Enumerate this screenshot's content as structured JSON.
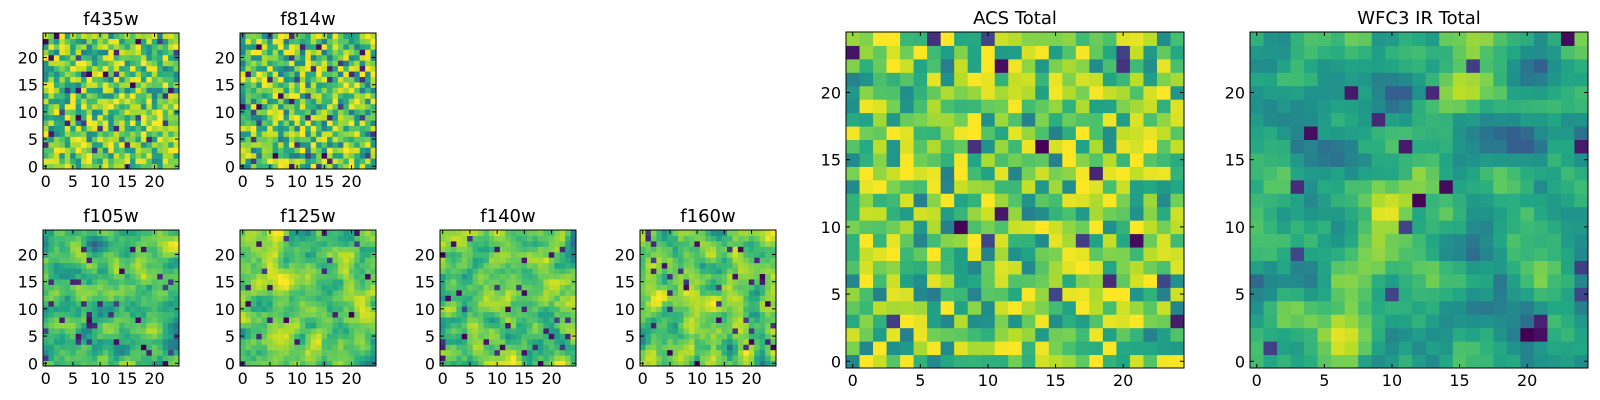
{
  "chart_data": [
    {
      "type": "heatmap",
      "title": "f435w",
      "size": 25,
      "seed": 11,
      "smooth": 0,
      "bias": 0.08,
      "gamma": 1.6,
      "dark_frac": 0.05,
      "xticks": [
        0,
        5,
        10,
        15,
        20
      ],
      "yticks": [
        0,
        5,
        10,
        15,
        20
      ],
      "xlim": [
        -0.5,
        24.5
      ],
      "ylim": [
        -0.5,
        24.5
      ],
      "colormap": "viridis"
    },
    {
      "type": "heatmap",
      "title": "f814w",
      "size": 25,
      "seed": 23,
      "smooth": 0,
      "bias": 0.05,
      "gamma": 1.5,
      "dark_frac": 0.06,
      "xticks": [
        0,
        5,
        10,
        15,
        20
      ],
      "yticks": [
        0,
        5,
        10,
        15,
        20
      ],
      "xlim": [
        -0.5,
        24.5
      ],
      "ylim": [
        -0.5,
        24.5
      ],
      "colormap": "viridis"
    },
    {
      "type": "heatmap",
      "title": "f105w",
      "size": 25,
      "seed": 37,
      "smooth": 1,
      "bias": -0.02,
      "gamma": 1.3,
      "dark_frac": 0.05,
      "xticks": [
        0,
        5,
        10,
        15,
        20
      ],
      "yticks": [
        0,
        5,
        10,
        15,
        20
      ],
      "xlim": [
        -0.5,
        24.5
      ],
      "ylim": [
        -0.5,
        24.5
      ],
      "colormap": "viridis"
    },
    {
      "type": "heatmap",
      "title": "f125w",
      "size": 25,
      "seed": 41,
      "smooth": 1,
      "bias": 0.06,
      "gamma": 1.5,
      "dark_frac": 0.04,
      "xticks": [
        0,
        5,
        10,
        15,
        20
      ],
      "yticks": [
        0,
        5,
        10,
        15,
        20
      ],
      "xlim": [
        -0.5,
        24.5
      ],
      "ylim": [
        -0.5,
        24.5
      ],
      "colormap": "viridis"
    },
    {
      "type": "heatmap",
      "title": "f140w",
      "size": 25,
      "seed": 53,
      "smooth": 1,
      "bias": 0.02,
      "gamma": 1.4,
      "dark_frac": 0.04,
      "xticks": [
        0,
        5,
        10,
        15,
        20
      ],
      "yticks": [
        0,
        5,
        10,
        15,
        20
      ],
      "xlim": [
        -0.5,
        24.5
      ],
      "ylim": [
        -0.5,
        24.5
      ],
      "colormap": "viridis"
    },
    {
      "type": "heatmap",
      "title": "f160w",
      "size": 25,
      "seed": 67,
      "smooth": 1,
      "bias": 0.03,
      "gamma": 1.4,
      "dark_frac": 0.05,
      "xticks": [
        0,
        5,
        10,
        15,
        20
      ],
      "yticks": [
        0,
        5,
        10,
        15,
        20
      ],
      "xlim": [
        -0.5,
        24.5
      ],
      "ylim": [
        -0.5,
        24.5
      ],
      "colormap": "viridis"
    },
    {
      "type": "heatmap",
      "title": "ACS Total",
      "size": 25,
      "seed": 79,
      "smooth": 0,
      "bias": 0.05,
      "gamma": 1.7,
      "dark_frac": 0.025,
      "xticks": [
        0,
        5,
        10,
        15,
        20
      ],
      "yticks": [
        0,
        5,
        10,
        15,
        20
      ],
      "xlim": [
        -0.5,
        24.5
      ],
      "ylim": [
        -0.5,
        24.5
      ],
      "colormap": "viridis"
    },
    {
      "type": "heatmap",
      "title": "WFC3 IR Total",
      "size": 25,
      "seed": 97,
      "smooth": 1,
      "bias": -0.05,
      "gamma": 1.2,
      "dark_frac": 0.03,
      "ridge": true,
      "xticks": [
        0,
        5,
        10,
        15,
        20
      ],
      "yticks": [
        0,
        5,
        10,
        15,
        20
      ],
      "xlim": [
        -0.5,
        24.5
      ],
      "ylim": [
        -0.5,
        24.5
      ],
      "colormap": "viridis"
    }
  ]
}
